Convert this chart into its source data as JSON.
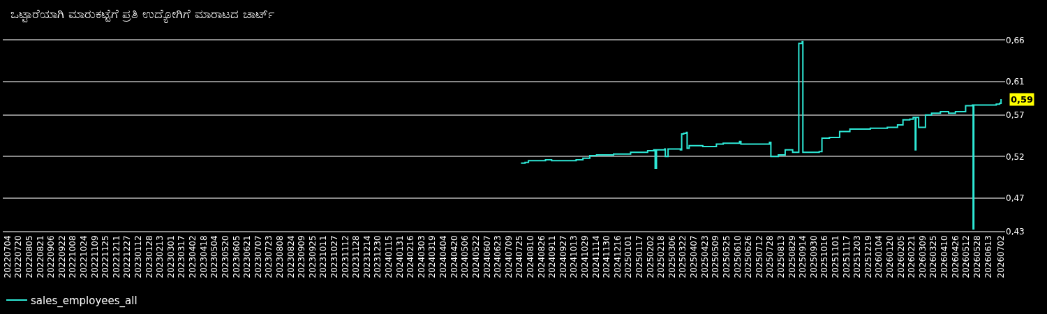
{
  "chart_data": {
    "type": "step",
    "title": "ಒಟ್ಟಾರೆಯಾಗಿ ಮಾರುಕಟ್ಟೆಗೆ ಪ್ರತಿ ಉದ್ಯೋಗಿಗೆ ಮಾರಾಟದ ಚಾರ್ಟ್",
    "series": [
      {
        "name": "sales_employees_all",
        "color": "#2ee8d6",
        "x": [
          "2024-07-27",
          "2024-08-02",
          "2024-08-07",
          "2024-09-01",
          "2024-09-10",
          "2024-10-11",
          "2024-10-16",
          "2024-10-26",
          "2024-11-05",
          "2024-11-15",
          "2024-12-10",
          "2025-01-04",
          "2025-01-29",
          "2025-02-07",
          "2025-02-09",
          "2025-02-11",
          "2025-02-23",
          "2025-02-24",
          "2025-02-28",
          "2025-03-18",
          "2025-03-20",
          "2025-03-23",
          "2025-03-27",
          "2025-03-28",
          "2025-03-31",
          "2025-04-20",
          "2025-05-10",
          "2025-05-20",
          "2025-06-13",
          "2025-06-15",
          "2025-07-25",
          "2025-07-27",
          "2025-07-29",
          "2025-08-09",
          "2025-08-19",
          "2025-08-29",
          "2025-08-30",
          "2025-09-07",
          "2025-09-08",
          "2025-09-13",
          "2025-09-14",
          "2025-10-08",
          "2025-10-12",
          "2025-10-23",
          "2025-11-07",
          "2025-11-22",
          "2025-12-22",
          "2026-01-16",
          "2026-01-31",
          "2026-02-08",
          "2026-02-18",
          "2026-02-23",
          "2026-02-26",
          "2026-02-27",
          "2026-03-02",
          "2026-03-03",
          "2026-03-12",
          "2026-03-13",
          "2026-03-22",
          "2026-04-01",
          "2026-04-04",
          "2026-04-16",
          "2026-04-26",
          "2026-05-11",
          "2026-05-21",
          "2026-05-22",
          "2026-05-23",
          "2026-06-25",
          "2026-06-30",
          "2026-07-02"
        ],
        "values": [
          0.512,
          0.513,
          0.515,
          0.516,
          0.515,
          0.515,
          0.516,
          0.518,
          0.521,
          0.522,
          0.523,
          0.525,
          0.527,
          0.528,
          0.506,
          0.528,
          0.529,
          0.52,
          0.529,
          0.528,
          0.547,
          0.548,
          0.549,
          0.53,
          0.533,
          0.532,
          0.535,
          0.536,
          0.538,
          0.535,
          0.535,
          0.537,
          0.52,
          0.522,
          0.528,
          0.528,
          0.525,
          0.525,
          0.656,
          0.658,
          0.525,
          0.526,
          0.542,
          0.543,
          0.55,
          0.553,
          0.554,
          0.555,
          0.558,
          0.564,
          0.565,
          0.567,
          0.528,
          0.567,
          0.567,
          0.555,
          0.555,
          0.57,
          0.572,
          0.572,
          0.574,
          0.572,
          0.574,
          0.581,
          0.582,
          0.433,
          0.582,
          0.583,
          0.584,
          0.589
        ]
      }
    ],
    "annotations": [
      {
        "text": "0,59",
        "x": "2026-07-02",
        "y": 0.589
      }
    ],
    "xlim": [
      "2022-06-27",
      "2026-07-08"
    ],
    "xticks": [
      {
        "value": "2022-07-04",
        "label": "20220704"
      },
      {
        "value": "2022-07-20",
        "label": "20220720"
      },
      {
        "value": "2022-08-05",
        "label": "20220805"
      },
      {
        "value": "2022-08-21",
        "label": "20220821"
      },
      {
        "value": "2022-09-06",
        "label": "20220906"
      },
      {
        "value": "2022-09-22",
        "label": "20220922"
      },
      {
        "value": "2022-10-08",
        "label": "20221008"
      },
      {
        "value": "2022-10-24",
        "label": "20221024"
      },
      {
        "value": "2022-11-09",
        "label": "20221109"
      },
      {
        "value": "2022-11-25",
        "label": "20221125"
      },
      {
        "value": "2022-12-11",
        "label": "20221211"
      },
      {
        "value": "2022-12-27",
        "label": "20221227"
      },
      {
        "value": "2023-01-12",
        "label": "20230112"
      },
      {
        "value": "2023-01-28",
        "label": "20230128"
      },
      {
        "value": "2023-02-13",
        "label": "20230213"
      },
      {
        "value": "2023-03-01",
        "label": "20230301"
      },
      {
        "value": "2023-03-17",
        "label": "20230317"
      },
      {
        "value": "2023-04-02",
        "label": "20230402"
      },
      {
        "value": "2023-04-18",
        "label": "20230418"
      },
      {
        "value": "2023-05-04",
        "label": "20230504"
      },
      {
        "value": "2023-05-20",
        "label": "20230520"
      },
      {
        "value": "2023-06-05",
        "label": "20230605"
      },
      {
        "value": "2023-06-21",
        "label": "20230621"
      },
      {
        "value": "2023-07-07",
        "label": "20230707"
      },
      {
        "value": "2023-07-23",
        "label": "20230723"
      },
      {
        "value": "2023-08-08",
        "label": "20230808"
      },
      {
        "value": "2023-08-24",
        "label": "20230824"
      },
      {
        "value": "2023-09-09",
        "label": "20230909"
      },
      {
        "value": "2023-09-25",
        "label": "20230925"
      },
      {
        "value": "2023-10-11",
        "label": "20231011"
      },
      {
        "value": "2023-10-27",
        "label": "20231027"
      },
      {
        "value": "2023-11-12",
        "label": "20231112"
      },
      {
        "value": "2023-11-28",
        "label": "20231128"
      },
      {
        "value": "2023-12-14",
        "label": "20231214"
      },
      {
        "value": "2023-12-30",
        "label": "20231230"
      },
      {
        "value": "2024-01-15",
        "label": "20240115"
      },
      {
        "value": "2024-01-31",
        "label": "20240131"
      },
      {
        "value": "2024-02-16",
        "label": "20240216"
      },
      {
        "value": "2024-03-03",
        "label": "20240303"
      },
      {
        "value": "2024-03-19",
        "label": "20240319"
      },
      {
        "value": "2024-04-04",
        "label": "20240404"
      },
      {
        "value": "2024-04-20",
        "label": "20240420"
      },
      {
        "value": "2024-05-06",
        "label": "20240506"
      },
      {
        "value": "2024-05-22",
        "label": "20240522"
      },
      {
        "value": "2024-06-07",
        "label": "20240607"
      },
      {
        "value": "2024-06-23",
        "label": "20240623"
      },
      {
        "value": "2024-07-09",
        "label": "20240709"
      },
      {
        "value": "2024-07-25",
        "label": "20240725"
      },
      {
        "value": "2024-08-10",
        "label": "20240810"
      },
      {
        "value": "2024-08-26",
        "label": "20240826"
      },
      {
        "value": "2024-09-11",
        "label": "20240911"
      },
      {
        "value": "2024-09-27",
        "label": "20240927"
      },
      {
        "value": "2024-10-13",
        "label": "20241013"
      },
      {
        "value": "2024-10-29",
        "label": "20241029"
      },
      {
        "value": "2024-11-14",
        "label": "20241114"
      },
      {
        "value": "2024-11-30",
        "label": "20241130"
      },
      {
        "value": "2024-12-16",
        "label": "20241216"
      },
      {
        "value": "2025-01-01",
        "label": "20250101"
      },
      {
        "value": "2025-01-17",
        "label": "20250117"
      },
      {
        "value": "2025-02-02",
        "label": "20250202"
      },
      {
        "value": "2025-02-18",
        "label": "20250218"
      },
      {
        "value": "2025-03-06",
        "label": "20250306"
      },
      {
        "value": "2025-03-22",
        "label": "20250322"
      },
      {
        "value": "2025-04-07",
        "label": "20250407"
      },
      {
        "value": "2025-04-23",
        "label": "20250423"
      },
      {
        "value": "2025-05-09",
        "label": "20250509"
      },
      {
        "value": "2025-05-25",
        "label": "20250525"
      },
      {
        "value": "2025-06-10",
        "label": "20250610"
      },
      {
        "value": "2025-06-26",
        "label": "20250626"
      },
      {
        "value": "2025-07-12",
        "label": "20250712"
      },
      {
        "value": "2025-07-28",
        "label": "20250728"
      },
      {
        "value": "2025-08-13",
        "label": "20250813"
      },
      {
        "value": "2025-08-29",
        "label": "20250829"
      },
      {
        "value": "2025-09-14",
        "label": "20250914"
      },
      {
        "value": "2025-09-30",
        "label": "20250930"
      },
      {
        "value": "2025-10-16",
        "label": "20251016"
      },
      {
        "value": "2025-11-01",
        "label": "20251101"
      },
      {
        "value": "2025-11-17",
        "label": "20251117"
      },
      {
        "value": "2025-12-03",
        "label": "20251203"
      },
      {
        "value": "2025-12-19",
        "label": "20251219"
      },
      {
        "value": "2026-01-04",
        "label": "20260104"
      },
      {
        "value": "2026-01-20",
        "label": "20260120"
      },
      {
        "value": "2026-02-05",
        "label": "20260205"
      },
      {
        "value": "2026-02-21",
        "label": "20260221"
      },
      {
        "value": "2026-03-09",
        "label": "20260309"
      },
      {
        "value": "2026-03-25",
        "label": "20260325"
      },
      {
        "value": "2026-04-10",
        "label": "20260410"
      },
      {
        "value": "2026-04-26",
        "label": "20260426"
      },
      {
        "value": "2026-05-12",
        "label": "20260512"
      },
      {
        "value": "2026-05-28",
        "label": "20260528"
      },
      {
        "value": "2026-06-13",
        "label": "20260613"
      },
      {
        "value": "2026-07-02",
        "label": "20260702"
      }
    ],
    "ylim": [
      0.428,
      0.662
    ],
    "yticks": [
      {
        "value": 0.43,
        "label": "0,43"
      },
      {
        "value": 0.47,
        "label": "0,47"
      },
      {
        "value": 0.52,
        "label": "0,52"
      },
      {
        "value": 0.57,
        "label": "0,57"
      },
      {
        "value": 0.61,
        "label": "0,61"
      },
      {
        "value": 0.66,
        "label": "0,66"
      }
    ],
    "grid": "y",
    "legend": "bottom left",
    "marker": "none",
    "line_style": "solid"
  }
}
